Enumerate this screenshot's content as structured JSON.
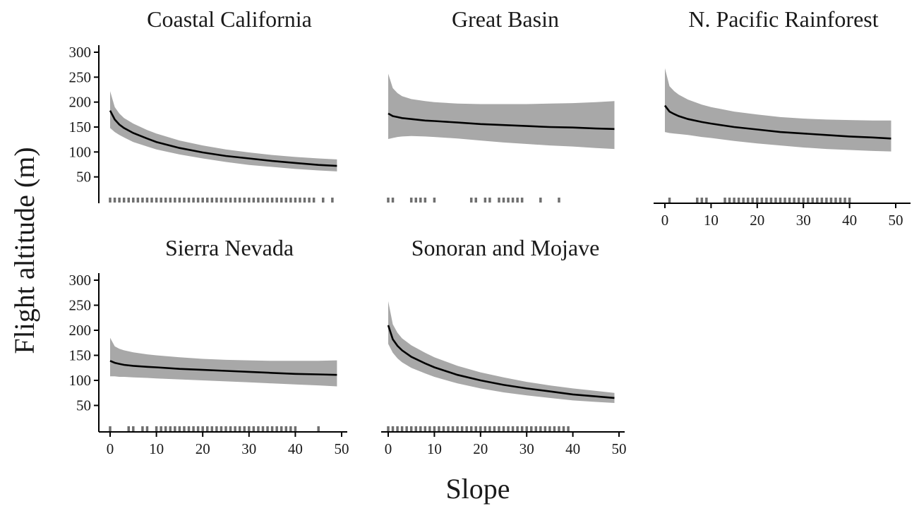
{
  "figure": {
    "xlabel": "Slope",
    "ylabel": "Flight altitude (m)"
  },
  "chart_data": [
    {
      "type": "line",
      "title": "Coastal California",
      "x": [
        0,
        1,
        2,
        3,
        5,
        8,
        10,
        15,
        20,
        25,
        30,
        35,
        40,
        45,
        49
      ],
      "series": [
        {
          "values": [
            183,
            165,
            155,
            148,
            138,
            127,
            120,
            108,
            99,
            92,
            87,
            82,
            78,
            74,
            72
          ]
        }
      ],
      "ci_upper": [
        222,
        190,
        177,
        168,
        157,
        144,
        137,
        123,
        113,
        105,
        99,
        94,
        90,
        87,
        85
      ],
      "ci_lower": [
        148,
        140,
        134,
        129,
        120,
        111,
        105,
        95,
        87,
        80,
        74,
        70,
        66,
        63,
        61
      ],
      "rug": [
        0,
        1,
        2,
        3,
        4,
        5,
        6,
        7,
        8,
        9,
        10,
        11,
        12,
        13,
        14,
        15,
        16,
        17,
        18,
        19,
        20,
        21,
        22,
        23,
        24,
        25,
        26,
        27,
        28,
        29,
        30,
        31,
        32,
        33,
        34,
        35,
        36,
        37,
        38,
        39,
        40,
        41,
        42,
        43,
        44,
        46,
        48
      ],
      "yticks": [
        50,
        100,
        150,
        200,
        250,
        300
      ],
      "xticks": [],
      "xlim": [
        0,
        50
      ],
      "ylim": [
        0,
        300
      ]
    },
    {
      "type": "line",
      "title": "Great Basin",
      "x": [
        0,
        1,
        2,
        3,
        5,
        8,
        10,
        15,
        20,
        25,
        30,
        35,
        40,
        45,
        49
      ],
      "series": [
        {
          "values": [
            177,
            172,
            170,
            168,
            166,
            163,
            162,
            159,
            156,
            154,
            152,
            150,
            149,
            147,
            146
          ]
        }
      ],
      "ci_upper": [
        257,
        228,
        218,
        212,
        206,
        202,
        200,
        197,
        196,
        196,
        196,
        197,
        198,
        200,
        202
      ],
      "ci_lower": [
        126,
        128,
        130,
        131,
        132,
        131,
        130,
        127,
        123,
        119,
        116,
        113,
        111,
        108,
        106
      ],
      "rug": [
        0,
        1,
        5,
        6,
        7,
        8,
        10,
        18,
        19,
        21,
        22,
        24,
        25,
        26,
        27,
        28,
        29,
        33,
        37
      ],
      "yticks": [],
      "xticks": [],
      "xlim": [
        0,
        50
      ],
      "ylim": [
        0,
        300
      ]
    },
    {
      "type": "line",
      "title": "N. Pacific Rainforest",
      "x": [
        0,
        1,
        2,
        3,
        5,
        8,
        10,
        15,
        20,
        25,
        30,
        35,
        40,
        45,
        49
      ],
      "series": [
        {
          "values": [
            193,
            181,
            176,
            172,
            166,
            160,
            157,
            150,
            145,
            140,
            137,
            134,
            131,
            129,
            127
          ]
        }
      ],
      "ci_upper": [
        268,
        232,
        222,
        215,
        205,
        195,
        190,
        181,
        175,
        170,
        167,
        165,
        164,
        163,
        163
      ],
      "ci_lower": [
        140,
        138,
        137,
        136,
        134,
        130,
        128,
        122,
        117,
        113,
        109,
        106,
        104,
        102,
        101
      ],
      "rug": [
        1,
        7,
        8,
        9,
        13,
        14,
        15,
        16,
        17,
        18,
        19,
        20,
        21,
        22,
        23,
        24,
        25,
        26,
        27,
        28,
        29,
        30,
        31,
        32,
        33,
        34,
        35,
        36,
        37,
        38,
        39,
        40
      ],
      "yticks": [],
      "xticks": [
        0,
        10,
        20,
        30,
        40,
        50
      ],
      "xlim": [
        0,
        50
      ],
      "ylim": [
        0,
        300
      ]
    },
    {
      "type": "line",
      "title": "Sierra Nevada",
      "x": [
        0,
        1,
        2,
        3,
        5,
        8,
        10,
        15,
        20,
        25,
        30,
        35,
        40,
        45,
        49
      ],
      "series": [
        {
          "values": [
            139,
            135,
            133,
            131,
            129,
            127,
            126,
            123,
            121,
            119,
            117,
            115,
            113,
            112,
            111
          ]
        }
      ],
      "ci_upper": [
        185,
        168,
        163,
        160,
        156,
        152,
        150,
        146,
        143,
        141,
        140,
        139,
        139,
        139,
        140
      ],
      "ci_lower": [
        108,
        108,
        107,
        107,
        106,
        105,
        104,
        102,
        100,
        98,
        96,
        94,
        92,
        90,
        88
      ],
      "rug": [
        0,
        4,
        5,
        7,
        8,
        10,
        11,
        12,
        13,
        14,
        15,
        16,
        17,
        18,
        19,
        20,
        21,
        22,
        23,
        24,
        25,
        26,
        27,
        28,
        29,
        30,
        31,
        32,
        33,
        34,
        35,
        36,
        37,
        38,
        39,
        40,
        45
      ],
      "yticks": [
        50,
        100,
        150,
        200,
        250,
        300
      ],
      "xticks": [
        0,
        10,
        20,
        30,
        40,
        50
      ],
      "xlim": [
        0,
        50
      ],
      "ylim": [
        0,
        300
      ]
    },
    {
      "type": "line",
      "title": "Sonoran and Mojave",
      "x": [
        0,
        1,
        2,
        3,
        5,
        8,
        10,
        15,
        20,
        25,
        30,
        35,
        40,
        45,
        49
      ],
      "series": [
        {
          "values": [
            210,
            182,
            169,
            160,
            147,
            134,
            126,
            111,
            100,
            91,
            84,
            78,
            72,
            68,
            65
          ]
        }
      ],
      "ci_upper": [
        258,
        212,
        195,
        184,
        170,
        155,
        146,
        129,
        116,
        106,
        97,
        90,
        84,
        79,
        75
      ],
      "ci_lower": [
        173,
        155,
        144,
        136,
        125,
        114,
        107,
        94,
        84,
        76,
        70,
        65,
        60,
        57,
        55
      ],
      "rug": [
        0,
        1,
        2,
        3,
        4,
        5,
        6,
        7,
        8,
        9,
        10,
        11,
        12,
        13,
        14,
        15,
        16,
        17,
        18,
        19,
        20,
        21,
        22,
        23,
        24,
        25,
        26,
        27,
        28,
        29,
        30,
        31,
        32,
        33,
        34,
        35,
        36,
        37,
        38,
        39
      ],
      "yticks": [],
      "xticks": [
        0,
        10,
        20,
        30,
        40,
        50
      ],
      "xlim": [
        0,
        50
      ],
      "ylim": [
        0,
        300
      ]
    }
  ]
}
